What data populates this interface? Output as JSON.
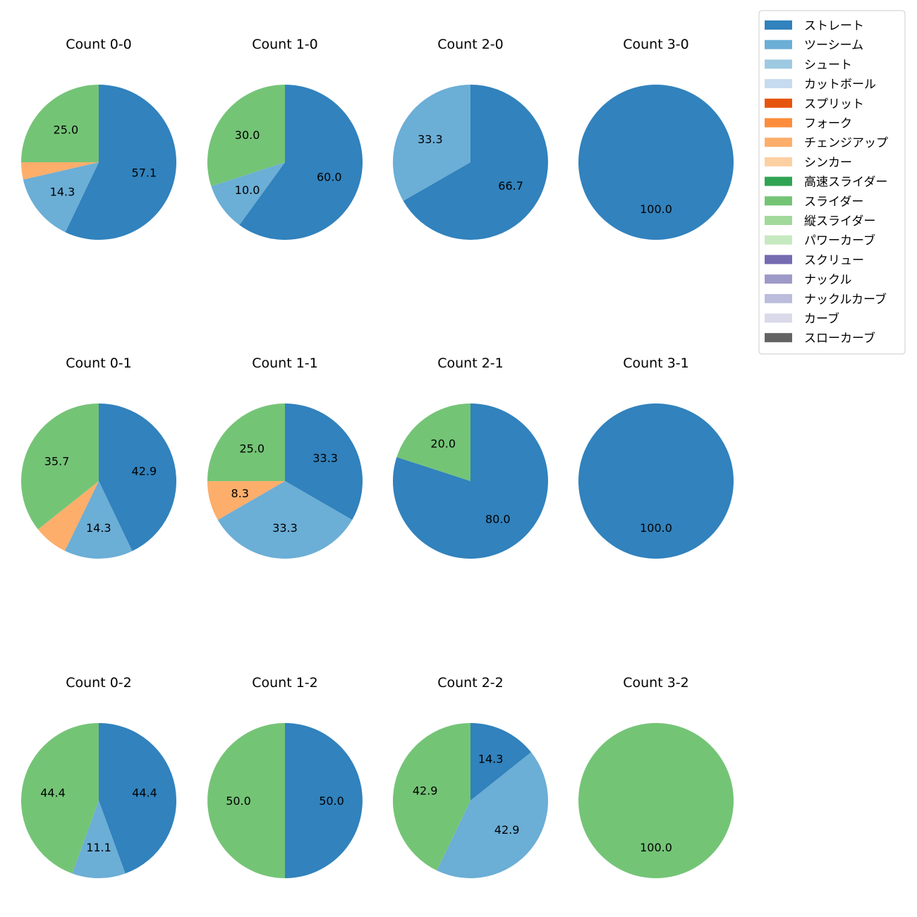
{
  "chart_data": {
    "type": "pie",
    "colors": {
      "ストレート": "#3182bd",
      "ツーシーム": "#6baed6",
      "シュート": "#9ecae1",
      "カットボール": "#c6dbef",
      "スプリット": "#e6550d",
      "フォーク": "#fd8d3c",
      "チェンジアップ": "#fdae6b",
      "シンカー": "#fdd0a2",
      "高速スライダー": "#31a354",
      "スライダー": "#74c476",
      "縦スライダー": "#a1d99b",
      "パワーカーブ": "#c7e9c0",
      "スクリュー": "#756bb1",
      "ナックル": "#9e9ac8",
      "ナックルカーブ": "#bcbddc",
      "カーブ": "#dadaeb",
      "スローカーブ": "#636363"
    },
    "legend": [
      "ストレート",
      "ツーシーム",
      "シュート",
      "カットボール",
      "スプリット",
      "フォーク",
      "チェンジアップ",
      "シンカー",
      "高速スライダー",
      "スライダー",
      "縦スライダー",
      "パワーカーブ",
      "スクリュー",
      "ナックル",
      "ナックルカーブ",
      "カーブ",
      "スローカーブ"
    ],
    "legend_position": "top-right",
    "charts": [
      {
        "title": "Count 0-0",
        "slices": [
          {
            "pitch": "ストレート",
            "value": 57.1
          },
          {
            "pitch": "ツーシーム",
            "value": 14.3
          },
          {
            "pitch": "チェンジアップ",
            "value": 3.6
          },
          {
            "pitch": "スライダー",
            "value": 25.0
          }
        ],
        "labels": [
          "57.1",
          "14.3",
          "",
          "25.0"
        ]
      },
      {
        "title": "Count 1-0",
        "slices": [
          {
            "pitch": "ストレート",
            "value": 60.0
          },
          {
            "pitch": "ツーシーム",
            "value": 10.0
          },
          {
            "pitch": "スライダー",
            "value": 30.0
          }
        ],
        "labels": [
          "60.0",
          "10.0",
          "30.0"
        ]
      },
      {
        "title": "Count 2-0",
        "slices": [
          {
            "pitch": "ストレート",
            "value": 66.7
          },
          {
            "pitch": "ツーシーム",
            "value": 33.3
          }
        ],
        "labels": [
          "66.7",
          "33.3"
        ]
      },
      {
        "title": "Count 3-0",
        "slices": [
          {
            "pitch": "ストレート",
            "value": 100.0
          }
        ],
        "labels": [
          "100.0"
        ]
      },
      {
        "title": "Count 0-1",
        "slices": [
          {
            "pitch": "ストレート",
            "value": 42.9
          },
          {
            "pitch": "ツーシーム",
            "value": 14.3
          },
          {
            "pitch": "チェンジアップ",
            "value": 7.1
          },
          {
            "pitch": "スライダー",
            "value": 35.7
          }
        ],
        "labels": [
          "42.9",
          "14.3",
          "",
          "35.7"
        ]
      },
      {
        "title": "Count 1-1",
        "slices": [
          {
            "pitch": "ストレート",
            "value": 33.3
          },
          {
            "pitch": "ツーシーム",
            "value": 33.3
          },
          {
            "pitch": "チェンジアップ",
            "value": 8.3
          },
          {
            "pitch": "スライダー",
            "value": 25.0
          }
        ],
        "labels": [
          "33.3",
          "33.3",
          "8.3",
          "25.0"
        ]
      },
      {
        "title": "Count 2-1",
        "slices": [
          {
            "pitch": "ストレート",
            "value": 80.0
          },
          {
            "pitch": "スライダー",
            "value": 20.0
          }
        ],
        "labels": [
          "80.0",
          "20.0"
        ]
      },
      {
        "title": "Count 3-1",
        "slices": [
          {
            "pitch": "ストレート",
            "value": 100.0
          }
        ],
        "labels": [
          "100.0"
        ]
      },
      {
        "title": "Count 0-2",
        "slices": [
          {
            "pitch": "ストレート",
            "value": 44.4
          },
          {
            "pitch": "ツーシーム",
            "value": 11.1
          },
          {
            "pitch": "スライダー",
            "value": 44.4
          }
        ],
        "labels": [
          "44.4",
          "11.1",
          "44.4"
        ]
      },
      {
        "title": "Count 1-2",
        "slices": [
          {
            "pitch": "ストレート",
            "value": 50.0
          },
          {
            "pitch": "スライダー",
            "value": 50.0
          }
        ],
        "labels": [
          "50.0",
          "50.0"
        ]
      },
      {
        "title": "Count 2-2",
        "slices": [
          {
            "pitch": "ストレート",
            "value": 14.3
          },
          {
            "pitch": "ツーシーム",
            "value": 42.9
          },
          {
            "pitch": "スライダー",
            "value": 42.9
          }
        ],
        "labels": [
          "14.3",
          "42.9",
          "42.9"
        ]
      },
      {
        "title": "Count 3-2",
        "slices": [
          {
            "pitch": "スライダー",
            "value": 100.0
          }
        ],
        "labels": [
          "100.0"
        ]
      }
    ]
  }
}
